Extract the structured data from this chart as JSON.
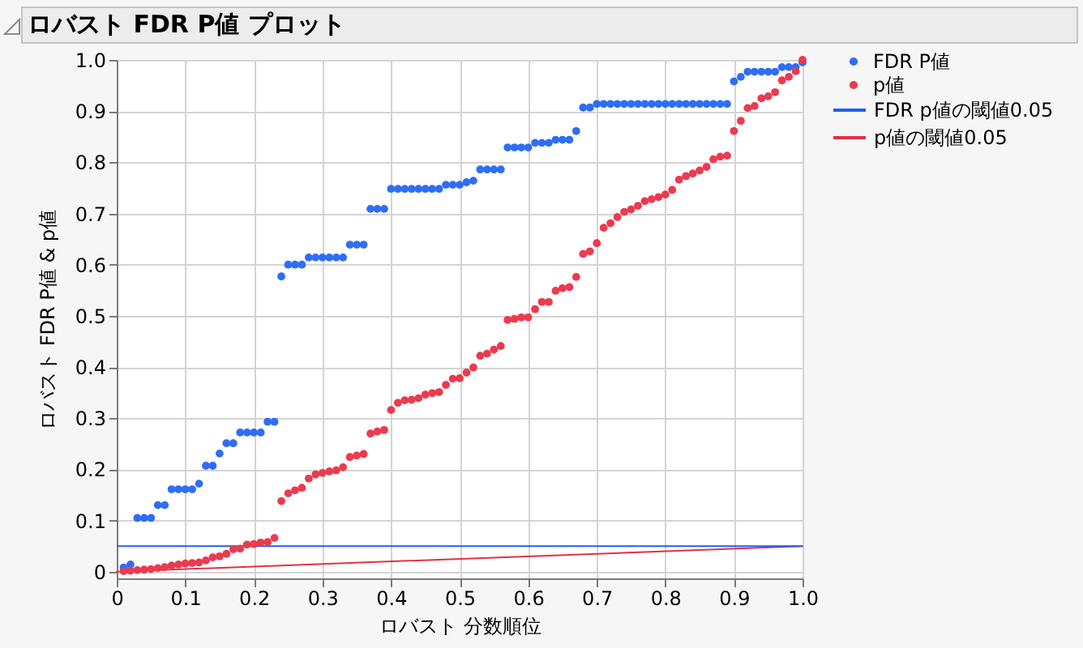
{
  "chart_data": {
    "type": "scatter",
    "title": "ロバスト FDR P値 プロット",
    "xlabel": "ロバスト 分数順位",
    "ylabel": "ロバスト FDR P値 & p値",
    "x": [
      0.01,
      0.02,
      0.03,
      0.04,
      0.05,
      0.06,
      0.07,
      0.08,
      0.09,
      0.1,
      0.11,
      0.12,
      0.13,
      0.14,
      0.15,
      0.16,
      0.17,
      0.18,
      0.19,
      0.2,
      0.21,
      0.22,
      0.23,
      0.24,
      0.25,
      0.26,
      0.27,
      0.28,
      0.29,
      0.3,
      0.31,
      0.32,
      0.33,
      0.34,
      0.35,
      0.36,
      0.37,
      0.38,
      0.39,
      0.4,
      0.41,
      0.42,
      0.43,
      0.44,
      0.45,
      0.46,
      0.47,
      0.48,
      0.49,
      0.5,
      0.51,
      0.52,
      0.53,
      0.54,
      0.55,
      0.56,
      0.57,
      0.58,
      0.59,
      0.6,
      0.61,
      0.62,
      0.63,
      0.64,
      0.65,
      0.66,
      0.67,
      0.68,
      0.69,
      0.7,
      0.71,
      0.72,
      0.73,
      0.74,
      0.75,
      0.76,
      0.77,
      0.78,
      0.79,
      0.8,
      0.81,
      0.82,
      0.83,
      0.84,
      0.85,
      0.86,
      0.87,
      0.88,
      0.89,
      0.9,
      0.91,
      0.92,
      0.93,
      0.94,
      0.95,
      0.96,
      0.97,
      0.98,
      0.99,
      1
    ],
    "series": [
      {
        "name": "FDR P値",
        "color": "#2f6ef2",
        "values": [
          0.008,
          0.014,
          0.105,
          0.105,
          0.105,
          0.13,
          0.13,
          0.161,
          0.161,
          0.161,
          0.161,
          0.172,
          0.207,
          0.207,
          0.231,
          0.251,
          0.251,
          0.272,
          0.272,
          0.272,
          0.272,
          0.293,
          0.293,
          0.577,
          0.6,
          0.6,
          0.6,
          0.614,
          0.614,
          0.614,
          0.614,
          0.614,
          0.614,
          0.639,
          0.639,
          0.639,
          0.709,
          0.709,
          0.709,
          0.748,
          0.748,
          0.748,
          0.748,
          0.748,
          0.748,
          0.748,
          0.748,
          0.756,
          0.756,
          0.756,
          0.761,
          0.764,
          0.786,
          0.786,
          0.786,
          0.786,
          0.829,
          0.829,
          0.829,
          0.829,
          0.838,
          0.838,
          0.838,
          0.844,
          0.844,
          0.844,
          0.861,
          0.907,
          0.907,
          0.914,
          0.914,
          0.914,
          0.914,
          0.914,
          0.914,
          0.914,
          0.914,
          0.914,
          0.914,
          0.914,
          0.914,
          0.914,
          0.914,
          0.914,
          0.914,
          0.914,
          0.914,
          0.914,
          0.914,
          0.958,
          0.967,
          0.977,
          0.977,
          0.977,
          0.977,
          0.977,
          0.986,
          0.986,
          0.986,
          0.995
        ]
      },
      {
        "name": "p値",
        "color": "#ec3a4e",
        "values": [
          0.001,
          0.002,
          0.003,
          0.004,
          0.005,
          0.007,
          0.009,
          0.012,
          0.014,
          0.016,
          0.017,
          0.018,
          0.022,
          0.028,
          0.03,
          0.035,
          0.044,
          0.045,
          0.053,
          0.054,
          0.057,
          0.058,
          0.066,
          0.138,
          0.153,
          0.159,
          0.164,
          0.182,
          0.19,
          0.193,
          0.196,
          0.198,
          0.204,
          0.224,
          0.227,
          0.23,
          0.27,
          0.274,
          0.277,
          0.316,
          0.33,
          0.335,
          0.336,
          0.339,
          0.346,
          0.349,
          0.351,
          0.365,
          0.377,
          0.378,
          0.389,
          0.399,
          0.422,
          0.426,
          0.434,
          0.441,
          0.492,
          0.494,
          0.497,
          0.497,
          0.513,
          0.527,
          0.527,
          0.549,
          0.554,
          0.556,
          0.576,
          0.621,
          0.626,
          0.642,
          0.672,
          0.681,
          0.693,
          0.703,
          0.708,
          0.715,
          0.724,
          0.728,
          0.732,
          0.737,
          0.746,
          0.766,
          0.773,
          0.778,
          0.784,
          0.791,
          0.806,
          0.811,
          0.813,
          0.861,
          0.881,
          0.906,
          0.91,
          0.925,
          0.929,
          0.937,
          0.96,
          0.967,
          0.978,
          1
        ]
      },
      {
        "name": "p値の閾値0.05",
        "type": "line",
        "marker": "none",
        "color": "#e23145",
        "x": [
          0,
          1
        ],
        "values": [
          0,
          0.05
        ]
      }
    ],
    "ref_lines": [
      {
        "axis": "y",
        "value": 0.05,
        "label": "FDR p値の閾値0.05",
        "color": "#1f5ef5"
      }
    ],
    "xlim": [
      0,
      1
    ],
    "ylim": [
      -0.013,
      1
    ],
    "xticks": [
      0,
      0.1,
      0.2,
      0.3,
      0.4,
      0.5,
      0.6,
      0.7,
      0.8,
      0.9,
      {
        "value": 1,
        "label": "1.0"
      }
    ],
    "yticks": [
      0,
      0.1,
      0.2,
      0.3,
      0.4,
      0.5,
      0.6,
      0.7,
      0.8,
      0.9,
      {
        "value": 1,
        "label": "1.0"
      }
    ],
    "grid": true,
    "legend": "right",
    "marker": "circle"
  }
}
